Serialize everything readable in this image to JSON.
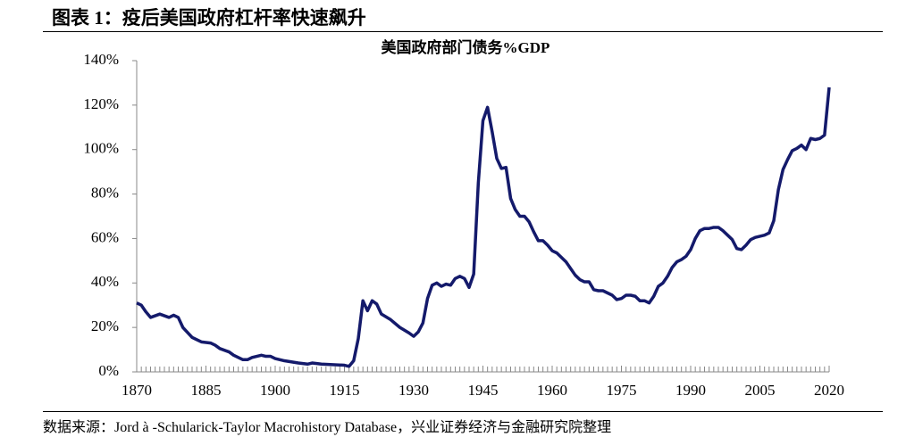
{
  "chart_data": {
    "type": "line",
    "figure_title": "图表 1：疫后美国政府杠杆率快速飙升",
    "title": "美国政府部门债务%GDP",
    "source": "数据来源：Jord à -Schularick-Taylor Macrohistory Database，兴业证券经济与金融研究院整理",
    "xlim": [
      1870,
      2020
    ],
    "xticks": [
      1870,
      1885,
      1900,
      1915,
      1930,
      1945,
      1960,
      1975,
      1990,
      2005,
      2020
    ],
    "ylim": [
      0,
      140
    ],
    "yticks": [
      {
        "value": 0,
        "label": "0%"
      },
      {
        "value": 20,
        "label": "20%"
      },
      {
        "value": 40,
        "label": "40%"
      },
      {
        "value": 60,
        "label": "60%"
      },
      {
        "value": 80,
        "label": "80%"
      },
      {
        "value": 100,
        "label": "100%"
      },
      {
        "value": 120,
        "label": "120%"
      },
      {
        "value": 140,
        "label": "140%"
      }
    ],
    "x": [
      1870,
      1871,
      1872,
      1873,
      1875,
      1877,
      1878,
      1879,
      1880,
      1882,
      1884,
      1886,
      1887,
      1888,
      1890,
      1891,
      1893,
      1894,
      1895,
      1896,
      1897,
      1898,
      1899,
      1900,
      1902,
      1905,
      1907,
      1908,
      1910,
      1915,
      1916,
      1917,
      1918,
      1919,
      1920,
      1921,
      1922,
      1923,
      1925,
      1927,
      1929,
      1930,
      1931,
      1932,
      1933,
      1934,
      1935,
      1936,
      1937,
      1938,
      1939,
      1940,
      1941,
      1942,
      1943,
      1944,
      1945,
      1946,
      1947,
      1948,
      1949,
      1950,
      1951,
      1952,
      1953,
      1954,
      1955,
      1956,
      1957,
      1958,
      1959,
      1960,
      1961,
      1962,
      1963,
      1964,
      1965,
      1966,
      1967,
      1968,
      1969,
      1970,
      1971,
      1972,
      1973,
      1974,
      1975,
      1976,
      1977,
      1978,
      1979,
      1980,
      1981,
      1982,
      1983,
      1984,
      1985,
      1986,
      1987,
      1988,
      1989,
      1990,
      1991,
      1992,
      1993,
      1994,
      1995,
      1996,
      1997,
      1998,
      1999,
      2000,
      2001,
      2002,
      2003,
      2004,
      2005,
      2006,
      2007,
      2008,
      2009,
      2010,
      2011,
      2012,
      2013,
      2014,
      2015,
      2016,
      2017,
      2018,
      2019,
      2020
    ],
    "series": [
      {
        "color": "#141a6b",
        "values": [
          31,
          30,
          27,
          24.5,
          26,
          24.5,
          25.5,
          24.5,
          20,
          15.5,
          13.5,
          13,
          12,
          10.5,
          9,
          7.5,
          5.5,
          5.5,
          6.5,
          7,
          7.5,
          7,
          7,
          6,
          5,
          4,
          3.5,
          4,
          3.5,
          3,
          2.5,
          5,
          15,
          32,
          27.5,
          32,
          30.5,
          26,
          23.5,
          20,
          17.5,
          16,
          18,
          22,
          33,
          39,
          40,
          38.5,
          39.5,
          39,
          42,
          43,
          42,
          38,
          44,
          85,
          113,
          119,
          108,
          96,
          91.5,
          92,
          78,
          73,
          70,
          70,
          67.5,
          63,
          59,
          59,
          57,
          54.5,
          53.5,
          51.5,
          49.5,
          46.5,
          43.5,
          41.5,
          40.5,
          40.5,
          37,
          36.5,
          36.5,
          35.5,
          34.5,
          32.5,
          33,
          34.5,
          34.5,
          34,
          32,
          32,
          31,
          34,
          38.5,
          40,
          43,
          47,
          49.5,
          50.5,
          52,
          55,
          60,
          63.5,
          64.5,
          64.5,
          65,
          65,
          63.5,
          61.5,
          59.5,
          55.5,
          55,
          57,
          59.5,
          60.5,
          61,
          61.5,
          62.5,
          68,
          82,
          91,
          95.5,
          99.5,
          100.5,
          102,
          100,
          105,
          104.5,
          105,
          106.5,
          128
        ]
      }
    ]
  }
}
